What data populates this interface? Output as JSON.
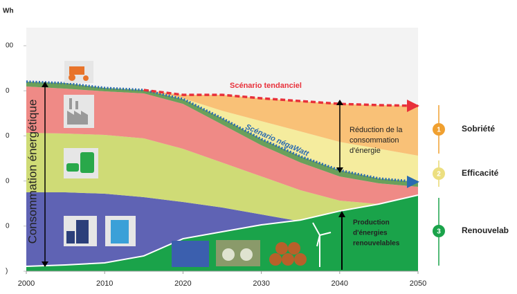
{
  "chart_data": {
    "type": "area",
    "unit": "Wh",
    "y_label": "Consommation énergétique",
    "x": [
      2000,
      2005,
      2010,
      2015,
      2020,
      2025,
      2030,
      2035,
      2040,
      2045,
      2050
    ],
    "xlim": [
      2000,
      2050
    ],
    "xticks": [
      2000,
      2010,
      2020,
      2030,
      2040,
      2050
    ],
    "ylim": [
      0,
      2700
    ],
    "yticks": [
      {
        "value": 2500,
        "label": "00"
      },
      {
        "value": 2000,
        "label": "0"
      },
      {
        "value": 1500,
        "label": "0"
      },
      {
        "value": 1000,
        "label": "0"
      },
      {
        "value": 500,
        "label": "0"
      },
      {
        "value": 0,
        "label": ")"
      }
    ],
    "series": [
      {
        "color": "#5f63b4",
        "stacked": true,
        "values": [
          874,
          874,
          859,
          821,
          767,
          706,
          629,
          552,
          475,
          437,
          399
        ]
      },
      {
        "color": "#cfdb76",
        "stacked": true,
        "values": [
          660,
          652,
          652,
          652,
          590,
          498,
          422,
          345,
          307,
          307,
          307
        ]
      },
      {
        "color": "#ef8a86",
        "stacked": true,
        "values": [
          514,
          498,
          483,
          498,
          498,
          422,
          345,
          307,
          268,
          230,
          230
        ]
      },
      {
        "color": "#6aa05a",
        "stacked": true,
        "line_color": "#2a6bb0",
        "values": [
          54,
          61,
          38,
          38,
          54,
          69,
          69,
          69,
          69,
          54,
          54
        ]
      },
      {
        "name": "Efficacité",
        "badge": "2",
        "color": "#f5ec9e",
        "stacked": true,
        "values": [
          null,
          null,
          null,
          0,
          8,
          84,
          199,
          276,
          314,
          330,
          291
        ]
      },
      {
        "name": "Sobriété",
        "badge": "1",
        "color": "#f9c177",
        "stacked": true,
        "line_color": "#e8303a",
        "values": [
          null,
          null,
          null,
          0,
          38,
          176,
          253,
          337,
          422,
          483,
          552
        ]
      },
      {
        "name": "Renouvelab",
        "badge": "3",
        "color": "#1aa34a",
        "stacked": false,
        "values": [
          54,
          69,
          92,
          169,
          360,
          437,
          514,
          567,
          667,
          744,
          844
        ]
      }
    ],
    "annotations": {
      "tendanciel": "Scénario tendanciel",
      "negawatt": "Scénario négaWatt",
      "reduction": [
        "Réduction de la",
        "consommation",
        "d'énergie"
      ],
      "production": [
        "Production",
        "d'énergies",
        "renouvelables"
      ]
    }
  }
}
